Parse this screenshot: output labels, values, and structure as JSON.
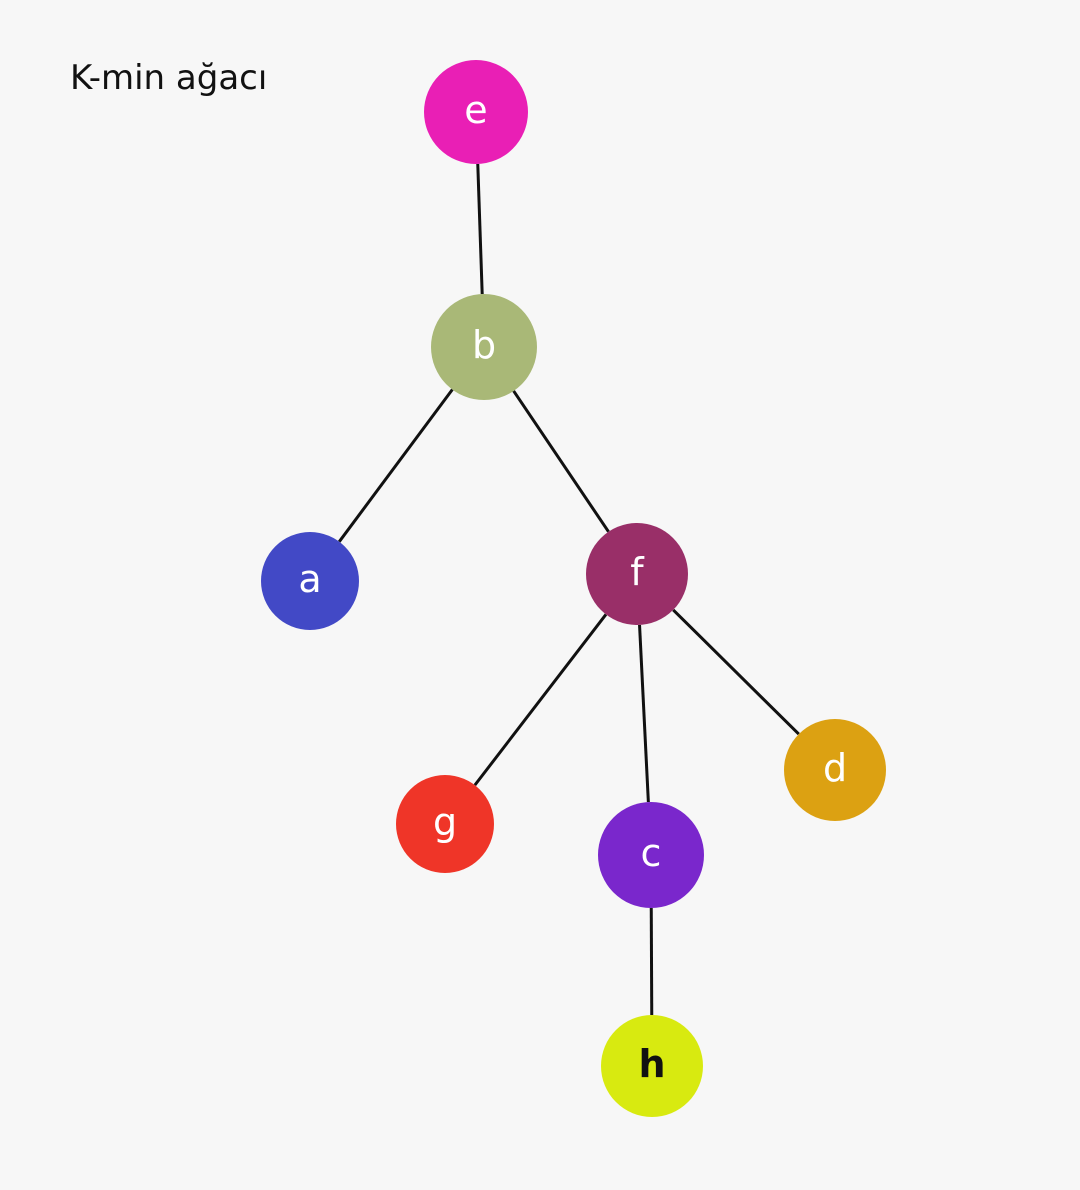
{
  "title": "K-min ağacı",
  "nodes": [
    {
      "id": "e",
      "label": "e",
      "color": "#e91fb5"
    },
    {
      "id": "b",
      "label": "b",
      "color": "#a9b877"
    },
    {
      "id": "a",
      "label": "a",
      "color": "#4249c6"
    },
    {
      "id": "f",
      "label": "f",
      "color": "#992f68"
    },
    {
      "id": "g",
      "label": "g",
      "color": "#ef3528"
    },
    {
      "id": "c",
      "label": "c",
      "color": "#7a27cc"
    },
    {
      "id": "d",
      "label": "d",
      "color": "#dca112"
    },
    {
      "id": "h",
      "label": "h",
      "color": "#d8ea10",
      "label_color": "#111111"
    }
  ],
  "edges": [
    [
      "e",
      "b"
    ],
    [
      "b",
      "a"
    ],
    [
      "b",
      "f"
    ],
    [
      "f",
      "g"
    ],
    [
      "f",
      "c"
    ],
    [
      "f",
      "d"
    ],
    [
      "c",
      "h"
    ]
  ]
}
